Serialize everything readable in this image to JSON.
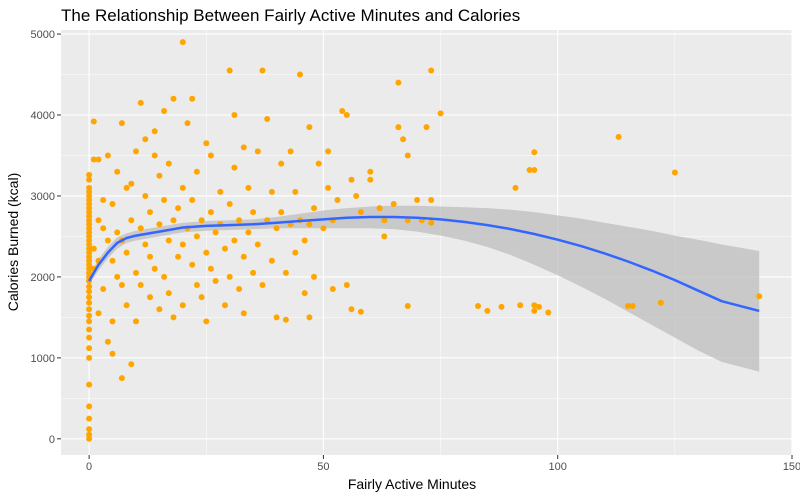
{
  "chart_data": {
    "type": "scatter",
    "title": "The Relationship Between Fairly Active Minutes and Calories",
    "xlabel": "Fairly Active Minutes",
    "ylabel": "Calories Burned (kcal)",
    "xlim": [
      -6,
      150
    ],
    "ylim": [
      -200,
      5050
    ],
    "xticks": [
      0,
      50,
      100,
      150
    ],
    "xtick_labels": [
      "0",
      "50",
      "100",
      "150"
    ],
    "yticks": [
      0,
      1000,
      2000,
      3000,
      4000,
      5000
    ],
    "ytick_labels": [
      "0",
      "1000",
      "2000",
      "3000",
      "4000",
      "5000"
    ],
    "grid": true,
    "panel_background": "#ebebeb",
    "point_color": "#ffa500",
    "smooth_color": "#3366ff",
    "ribbon_color": "#bdbdbd",
    "series": [
      {
        "type": "scatter",
        "points": [
          [
            0,
            0
          ],
          [
            0,
            50
          ],
          [
            0,
            120
          ],
          [
            0,
            250
          ],
          [
            0,
            400
          ],
          [
            0,
            670
          ],
          [
            0,
            1000
          ],
          [
            0,
            1120
          ],
          [
            0,
            1250
          ],
          [
            0,
            1350
          ],
          [
            0,
            1450
          ],
          [
            0,
            1520
          ],
          [
            0,
            1600
          ],
          [
            0,
            1680
          ],
          [
            0,
            1750
          ],
          [
            0,
            1820
          ],
          [
            0,
            1880
          ],
          [
            0,
            1950
          ],
          [
            0,
            2000
          ],
          [
            0,
            2050
          ],
          [
            0,
            2100
          ],
          [
            0,
            2150
          ],
          [
            0,
            2200
          ],
          [
            0,
            2250
          ],
          [
            0,
            2300
          ],
          [
            0,
            2350
          ],
          [
            0,
            2400
          ],
          [
            0,
            2450
          ],
          [
            0,
            2500
          ],
          [
            0,
            2550
          ],
          [
            0,
            2600
          ],
          [
            0,
            2650
          ],
          [
            0,
            2700
          ],
          [
            0,
            2750
          ],
          [
            0,
            2800
          ],
          [
            0,
            2850
          ],
          [
            0,
            2900
          ],
          [
            0,
            2950
          ],
          [
            0,
            3000
          ],
          [
            0,
            3050
          ],
          [
            0,
            3100
          ],
          [
            0,
            3200
          ],
          [
            0,
            3260
          ],
          [
            1,
            3450
          ],
          [
            1,
            3920
          ],
          [
            1,
            2100
          ],
          [
            1,
            2350
          ],
          [
            2,
            2700
          ],
          [
            2,
            3450
          ],
          [
            2,
            1550
          ],
          [
            2,
            2200
          ],
          [
            3,
            2600
          ],
          [
            3,
            1850
          ],
          [
            3,
            2950
          ],
          [
            4,
            3500
          ],
          [
            4,
            1200
          ],
          [
            4,
            2450
          ],
          [
            5,
            1050
          ],
          [
            5,
            1450
          ],
          [
            5,
            2900
          ],
          [
            5,
            2200
          ],
          [
            6,
            2550
          ],
          [
            6,
            3300
          ],
          [
            6,
            2000
          ],
          [
            7,
            750
          ],
          [
            7,
            1900
          ],
          [
            7,
            3900
          ],
          [
            7,
            2450
          ],
          [
            8,
            2300
          ],
          [
            8,
            1650
          ],
          [
            8,
            3100
          ],
          [
            9,
            920
          ],
          [
            9,
            2700
          ],
          [
            9,
            3150
          ],
          [
            10,
            3550
          ],
          [
            10,
            2050
          ],
          [
            10,
            1450
          ],
          [
            11,
            4150
          ],
          [
            11,
            2600
          ],
          [
            11,
            1900
          ],
          [
            12,
            3000
          ],
          [
            12,
            2400
          ],
          [
            12,
            3700
          ],
          [
            13,
            1750
          ],
          [
            13,
            2250
          ],
          [
            13,
            2800
          ],
          [
            14,
            3500
          ],
          [
            14,
            2100
          ],
          [
            14,
            3800
          ],
          [
            15,
            2650
          ],
          [
            15,
            1600
          ],
          [
            15,
            3250
          ],
          [
            16,
            4050
          ],
          [
            16,
            2950
          ],
          [
            16,
            2000
          ],
          [
            17,
            2450
          ],
          [
            17,
            1800
          ],
          [
            17,
            3400
          ],
          [
            18,
            4200
          ],
          [
            18,
            2700
          ],
          [
            18,
            1500
          ],
          [
            19,
            2850
          ],
          [
            19,
            2250
          ],
          [
            20,
            4900
          ],
          [
            20,
            3100
          ],
          [
            20,
            2400
          ],
          [
            20,
            1650
          ],
          [
            21,
            2600
          ],
          [
            21,
            3900
          ],
          [
            22,
            4200
          ],
          [
            22,
            2950
          ],
          [
            22,
            2150
          ],
          [
            23,
            1900
          ],
          [
            23,
            2500
          ],
          [
            23,
            3300
          ],
          [
            24,
            2700
          ],
          [
            24,
            1750
          ],
          [
            25,
            3650
          ],
          [
            25,
            2300
          ],
          [
            25,
            1450
          ],
          [
            26,
            3500
          ],
          [
            26,
            2800
          ],
          [
            26,
            2100
          ],
          [
            27,
            2550
          ],
          [
            27,
            1950
          ],
          [
            28,
            3050
          ],
          [
            28,
            2650
          ],
          [
            29,
            2350
          ],
          [
            29,
            1650
          ],
          [
            30,
            4550
          ],
          [
            30,
            2900
          ],
          [
            30,
            2000
          ],
          [
            31,
            4000
          ],
          [
            31,
            3350
          ],
          [
            31,
            2450
          ],
          [
            32,
            2700
          ],
          [
            32,
            1850
          ],
          [
            33,
            3600
          ],
          [
            33,
            2250
          ],
          [
            33,
            1550
          ],
          [
            34,
            3100
          ],
          [
            34,
            2550
          ],
          [
            35,
            2800
          ],
          [
            35,
            2050
          ],
          [
            36,
            3550
          ],
          [
            36,
            2400
          ],
          [
            37,
            4550
          ],
          [
            37,
            1900
          ],
          [
            38,
            3950
          ],
          [
            38,
            2700
          ],
          [
            39,
            3050
          ],
          [
            39,
            2200
          ],
          [
            40,
            2600
          ],
          [
            40,
            1500
          ],
          [
            41,
            3400
          ],
          [
            41,
            2800
          ],
          [
            42,
            1470
          ],
          [
            42,
            2050
          ],
          [
            43,
            3550
          ],
          [
            43,
            2650
          ],
          [
            44,
            3050
          ],
          [
            44,
            2300
          ],
          [
            45,
            4500
          ],
          [
            45,
            2700
          ],
          [
            46,
            1800
          ],
          [
            46,
            2450
          ],
          [
            47,
            3850
          ],
          [
            47,
            2650
          ],
          [
            47,
            1500
          ],
          [
            48,
            2000
          ],
          [
            48,
            2850
          ],
          [
            49,
            3400
          ],
          [
            50,
            2600
          ],
          [
            51,
            3100
          ],
          [
            51,
            3550
          ],
          [
            52,
            1850
          ],
          [
            52,
            2700
          ],
          [
            53,
            2950
          ],
          [
            54,
            4050
          ],
          [
            55,
            1900
          ],
          [
            55,
            4000
          ],
          [
            56,
            3200
          ],
          [
            56,
            1600
          ],
          [
            57,
            3000
          ],
          [
            58,
            2800
          ],
          [
            58,
            1570
          ],
          [
            60,
            3300
          ],
          [
            60,
            3200
          ],
          [
            62,
            2850
          ],
          [
            63,
            2500
          ],
          [
            63,
            2700
          ],
          [
            65,
            2900
          ],
          [
            66,
            4400
          ],
          [
            66,
            3850
          ],
          [
            67,
            3700
          ],
          [
            68,
            3500
          ],
          [
            68,
            2700
          ],
          [
            68,
            1640
          ],
          [
            70,
            2950
          ],
          [
            71,
            2700
          ],
          [
            72,
            3850
          ],
          [
            73,
            4550
          ],
          [
            73,
            2950
          ],
          [
            73,
            2670
          ],
          [
            75,
            4020
          ],
          [
            83,
            1640
          ],
          [
            85,
            1580
          ],
          [
            88,
            1630
          ],
          [
            91,
            3100
          ],
          [
            92,
            1650
          ],
          [
            94,
            3320
          ],
          [
            95,
            3320
          ],
          [
            95,
            3540
          ],
          [
            95,
            1650
          ],
          [
            95,
            1580
          ],
          [
            96,
            1630
          ],
          [
            98,
            1560
          ],
          [
            113,
            3730
          ],
          [
            115,
            1640
          ],
          [
            116,
            1640
          ],
          [
            122,
            1680
          ],
          [
            125,
            3290
          ],
          [
            143,
            1760
          ]
        ]
      },
      {
        "type": "loess",
        "name": "",
        "x": [
          0,
          2,
          4,
          6,
          8,
          10,
          15,
          20,
          25,
          30,
          35,
          40,
          45,
          50,
          55,
          60,
          65,
          70,
          75,
          80,
          85,
          90,
          95,
          100,
          105,
          110,
          115,
          120,
          125,
          130,
          135,
          143
        ],
        "y": [
          1950,
          2150,
          2300,
          2420,
          2480,
          2510,
          2560,
          2610,
          2630,
          2640,
          2650,
          2670,
          2690,
          2710,
          2730,
          2740,
          2740,
          2730,
          2710,
          2680,
          2640,
          2590,
          2530,
          2460,
          2380,
          2290,
          2190,
          2080,
          1960,
          1830,
          1700,
          1580
        ],
        "lower": [
          1900,
          2080,
          2230,
          2350,
          2420,
          2450,
          2500,
          2550,
          2570,
          2580,
          2590,
          2600,
          2600,
          2600,
          2600,
          2600,
          2590,
          2560,
          2510,
          2450,
          2370,
          2270,
          2150,
          2020,
          1880,
          1730,
          1570,
          1410,
          1250,
          1090,
          950,
          830
        ],
        "upper": [
          2000,
          2220,
          2370,
          2490,
          2540,
          2570,
          2620,
          2670,
          2690,
          2700,
          2710,
          2740,
          2780,
          2820,
          2850,
          2870,
          2880,
          2880,
          2870,
          2860,
          2850,
          2830,
          2800,
          2760,
          2720,
          2670,
          2620,
          2570,
          2510,
          2460,
          2400,
          2320
        ]
      }
    ]
  }
}
